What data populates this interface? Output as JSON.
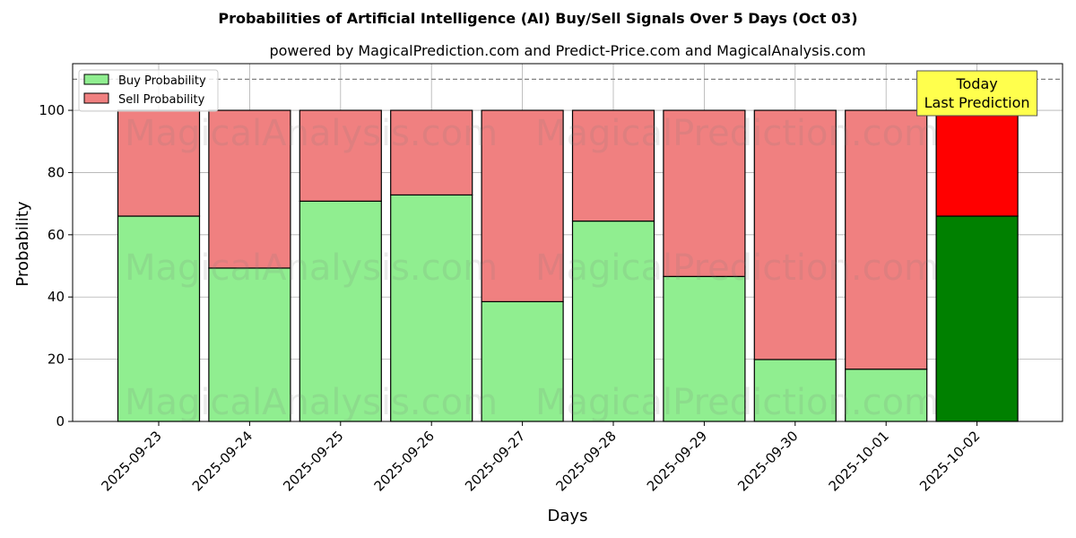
{
  "chart_data": {
    "type": "bar",
    "stacked": true,
    "title": "Probabilities of Artificial Intelligence (AI) Buy/Sell Signals Over 5 Days (Oct 03)",
    "subtitle": "powered by MagicalPrediction.com and Predict-Price.com and MagicalAnalysis.com",
    "xlabel": "Days",
    "ylabel": "Probability",
    "ylim": [
      0,
      115
    ],
    "yticks": [
      0,
      20,
      40,
      60,
      80,
      100
    ],
    "reference_line": 110,
    "grid": true,
    "legend_position": "top-left",
    "categories": [
      "2025-09-23",
      "2025-09-24",
      "2025-09-25",
      "2025-09-26",
      "2025-09-27",
      "2025-09-28",
      "2025-09-29",
      "2025-09-30",
      "2025-10-01",
      "2025-10-02"
    ],
    "series": [
      {
        "name": "Buy Probability",
        "values": [
          66,
          49.3,
          70.8,
          72.8,
          38.5,
          64.4,
          46.6,
          19.9,
          16.8,
          66
        ],
        "color": "#90ee90",
        "highlight_color": "#008000"
      },
      {
        "name": "Sell Probability",
        "values": [
          34,
          50.7,
          29.2,
          27.2,
          61.5,
          35.6,
          53.4,
          80.1,
          83.2,
          34
        ],
        "color": "#f08080",
        "highlight_color": "#ff0000"
      }
    ],
    "highlight_index": 9,
    "annotation": {
      "lines": [
        "Today",
        "Last Prediction"
      ],
      "color": "#ffff4d"
    },
    "watermarks": [
      "MagicalAnalysis.com",
      "MagicalPrediction.com"
    ]
  }
}
